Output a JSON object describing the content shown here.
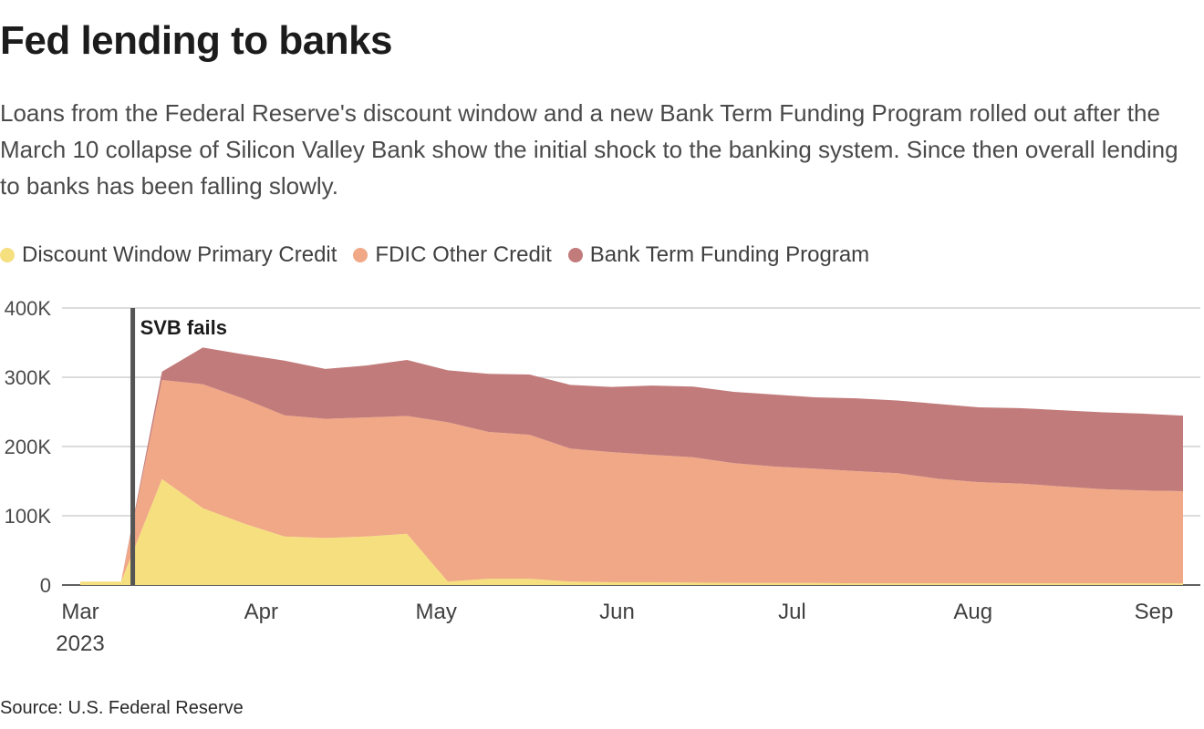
{
  "title": "Fed lending to banks",
  "subtitle": "Loans from the Federal Reserve's discount window and a new Bank Term Funding Program rolled out after the March 10 collapse of Silicon Valley Bank show the initial shock to the banking system. Since then overall lending to banks has been falling slowly.",
  "source": "Source: U.S. Federal Reserve",
  "chart_data": {
    "type": "area",
    "stacked": true,
    "x": [
      "2023-03-01",
      "2023-03-08",
      "2023-03-15",
      "2023-03-22",
      "2023-03-29",
      "2023-04-05",
      "2023-04-12",
      "2023-04-19",
      "2023-04-26",
      "2023-05-03",
      "2023-05-10",
      "2023-05-17",
      "2023-05-24",
      "2023-05-31",
      "2023-06-07",
      "2023-06-14",
      "2023-06-21",
      "2023-06-28",
      "2023-07-05",
      "2023-07-12",
      "2023-07-19",
      "2023-07-26",
      "2023-08-02",
      "2023-08-09",
      "2023-08-16",
      "2023-08-23",
      "2023-08-30",
      "2023-09-06"
    ],
    "series": [
      {
        "name": "Discount Window Primary Credit",
        "color": "#f6df7f",
        "values": [
          5000,
          5000,
          153000,
          111000,
          89000,
          70000,
          68000,
          70000,
          74000,
          5000,
          9000,
          9000,
          5000,
          4000,
          4000,
          3500,
          3000,
          3000,
          3000,
          2500,
          2500,
          2500,
          2500,
          2500,
          2500,
          2500,
          2500,
          2500
        ]
      },
      {
        "name": "FDIC Other Credit",
        "color": "#f0a886",
        "values": [
          0,
          0,
          143000,
          179000,
          180000,
          175000,
          172000,
          172000,
          170000,
          230000,
          212000,
          208000,
          192000,
          188000,
          184000,
          181000,
          173000,
          168000,
          165000,
          162000,
          159000,
          151000,
          146000,
          144000,
          140000,
          136000,
          134000,
          133000
        ]
      },
      {
        "name": "Bank Term Funding Program",
        "color": "#c27b7b",
        "values": [
          0,
          0,
          12000,
          53000,
          64000,
          79000,
          72000,
          75000,
          81000,
          75000,
          84000,
          87000,
          92000,
          94000,
          100000,
          102000,
          103000,
          104000,
          103000,
          105000,
          105000,
          108000,
          108000,
          109000,
          110000,
          111000,
          111000,
          109000
        ]
      }
    ],
    "annotations": [
      {
        "x": "2023-03-10",
        "label": "SVB fails"
      }
    ],
    "xticks": [
      {
        "date": "2023-03-01",
        "label": "Mar",
        "sublabel": "2023"
      },
      {
        "date": "2023-04-01",
        "label": "Apr"
      },
      {
        "date": "2023-05-01",
        "label": "May"
      },
      {
        "date": "2023-06-01",
        "label": "Jun"
      },
      {
        "date": "2023-07-01",
        "label": "Jul"
      },
      {
        "date": "2023-08-01",
        "label": "Aug"
      },
      {
        "date": "2023-09-01",
        "label": "Sep"
      }
    ],
    "yticks": [
      {
        "value": 0,
        "label": "0"
      },
      {
        "value": 100000,
        "label": "100K"
      },
      {
        "value": 200000,
        "label": "200K"
      },
      {
        "value": 300000,
        "label": "300K"
      },
      {
        "value": 400000,
        "label": "400K"
      }
    ],
    "ylim": [
      0,
      400000
    ],
    "xlim": [
      "2023-03-01",
      "2023-09-06"
    ],
    "grid": true,
    "legend_position": "top-left"
  }
}
